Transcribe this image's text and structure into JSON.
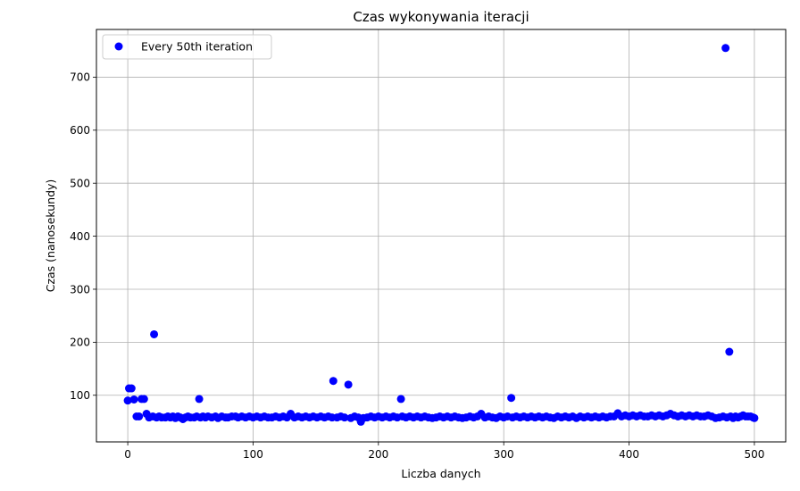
{
  "chart_data": {
    "type": "scatter",
    "title": "Czas wykonywania iteracji",
    "xlabel": "Liczba danych",
    "ylabel": "Czas (nanosekundy)",
    "xlim": [
      -25,
      525
    ],
    "ylim": [
      12,
      790
    ],
    "xticks": [
      0,
      100,
      200,
      300,
      400,
      500
    ],
    "yticks": [
      100,
      200,
      300,
      400,
      500,
      600,
      700
    ],
    "grid": true,
    "legend_position": "upper-left",
    "series": [
      {
        "name": "Every 50th iteration",
        "color": "#0000ff",
        "points": [
          [
            0,
            90
          ],
          [
            1,
            113
          ],
          [
            3,
            113
          ],
          [
            5,
            92
          ],
          [
            7,
            60
          ],
          [
            9,
            60
          ],
          [
            11,
            93
          ],
          [
            13,
            93
          ],
          [
            15,
            65
          ],
          [
            17,
            58
          ],
          [
            20,
            60
          ],
          [
            21,
            215
          ],
          [
            23,
            58
          ],
          [
            25,
            60
          ],
          [
            27,
            58
          ],
          [
            30,
            58
          ],
          [
            32,
            60
          ],
          [
            34,
            58
          ],
          [
            36,
            60
          ],
          [
            38,
            57
          ],
          [
            40,
            60
          ],
          [
            42,
            58
          ],
          [
            44,
            55
          ],
          [
            46,
            58
          ],
          [
            48,
            60
          ],
          [
            50,
            58
          ],
          [
            53,
            58
          ],
          [
            55,
            60
          ],
          [
            57,
            93
          ],
          [
            58,
            58
          ],
          [
            60,
            60
          ],
          [
            62,
            58
          ],
          [
            64,
            60
          ],
          [
            67,
            58
          ],
          [
            70,
            60
          ],
          [
            72,
            57
          ],
          [
            75,
            60
          ],
          [
            78,
            58
          ],
          [
            80,
            58
          ],
          [
            83,
            60
          ],
          [
            86,
            60
          ],
          [
            88,
            58
          ],
          [
            91,
            60
          ],
          [
            94,
            58
          ],
          [
            97,
            60
          ],
          [
            100,
            58
          ],
          [
            103,
            60
          ],
          [
            106,
            58
          ],
          [
            109,
            60
          ],
          [
            112,
            58
          ],
          [
            115,
            58
          ],
          [
            118,
            60
          ],
          [
            121,
            58
          ],
          [
            124,
            60
          ],
          [
            127,
            58
          ],
          [
            130,
            65
          ],
          [
            133,
            58
          ],
          [
            136,
            60
          ],
          [
            139,
            58
          ],
          [
            142,
            60
          ],
          [
            145,
            58
          ],
          [
            148,
            60
          ],
          [
            151,
            58
          ],
          [
            154,
            60
          ],
          [
            157,
            58
          ],
          [
            160,
            60
          ],
          [
            163,
            58
          ],
          [
            164,
            127
          ],
          [
            167,
            58
          ],
          [
            170,
            60
          ],
          [
            173,
            58
          ],
          [
            176,
            120
          ],
          [
            178,
            57
          ],
          [
            181,
            60
          ],
          [
            184,
            58
          ],
          [
            186,
            50
          ],
          [
            188,
            57
          ],
          [
            191,
            58
          ],
          [
            194,
            60
          ],
          [
            197,
            58
          ],
          [
            200,
            60
          ],
          [
            203,
            58
          ],
          [
            206,
            60
          ],
          [
            209,
            58
          ],
          [
            212,
            60
          ],
          [
            215,
            58
          ],
          [
            218,
            93
          ],
          [
            219,
            60
          ],
          [
            222,
            58
          ],
          [
            225,
            60
          ],
          [
            228,
            58
          ],
          [
            231,
            60
          ],
          [
            234,
            58
          ],
          [
            237,
            60
          ],
          [
            240,
            58
          ],
          [
            243,
            57
          ],
          [
            246,
            58
          ],
          [
            249,
            60
          ],
          [
            252,
            58
          ],
          [
            255,
            60
          ],
          [
            258,
            58
          ],
          [
            261,
            60
          ],
          [
            264,
            58
          ],
          [
            267,
            57
          ],
          [
            270,
            58
          ],
          [
            273,
            60
          ],
          [
            276,
            58
          ],
          [
            279,
            60
          ],
          [
            282,
            65
          ],
          [
            285,
            58
          ],
          [
            288,
            60
          ],
          [
            291,
            58
          ],
          [
            294,
            57
          ],
          [
            297,
            60
          ],
          [
            300,
            58
          ],
          [
            303,
            60
          ],
          [
            306,
            95
          ],
          [
            307,
            58
          ],
          [
            310,
            60
          ],
          [
            313,
            58
          ],
          [
            316,
            60
          ],
          [
            319,
            58
          ],
          [
            322,
            60
          ],
          [
            325,
            58
          ],
          [
            328,
            60
          ],
          [
            331,
            58
          ],
          [
            334,
            60
          ],
          [
            337,
            58
          ],
          [
            340,
            57
          ],
          [
            343,
            60
          ],
          [
            346,
            58
          ],
          [
            349,
            60
          ],
          [
            352,
            58
          ],
          [
            355,
            60
          ],
          [
            358,
            57
          ],
          [
            361,
            60
          ],
          [
            364,
            58
          ],
          [
            367,
            60
          ],
          [
            370,
            58
          ],
          [
            373,
            60
          ],
          [
            376,
            58
          ],
          [
            379,
            60
          ],
          [
            382,
            58
          ],
          [
            385,
            60
          ],
          [
            388,
            60
          ],
          [
            391,
            66
          ],
          [
            394,
            60
          ],
          [
            397,
            62
          ],
          [
            400,
            60
          ],
          [
            403,
            62
          ],
          [
            406,
            60
          ],
          [
            409,
            62
          ],
          [
            412,
            60
          ],
          [
            415,
            60
          ],
          [
            418,
            62
          ],
          [
            421,
            60
          ],
          [
            424,
            62
          ],
          [
            427,
            60
          ],
          [
            430,
            62
          ],
          [
            433,
            65
          ],
          [
            436,
            62
          ],
          [
            439,
            60
          ],
          [
            442,
            62
          ],
          [
            445,
            60
          ],
          [
            448,
            62
          ],
          [
            451,
            60
          ],
          [
            454,
            62
          ],
          [
            457,
            60
          ],
          [
            460,
            60
          ],
          [
            463,
            62
          ],
          [
            466,
            60
          ],
          [
            469,
            57
          ],
          [
            472,
            58
          ],
          [
            475,
            60
          ],
          [
            477,
            755
          ],
          [
            478,
            58
          ],
          [
            480,
            182
          ],
          [
            481,
            60
          ],
          [
            483,
            57
          ],
          [
            485,
            60
          ],
          [
            487,
            58
          ],
          [
            489,
            60
          ],
          [
            491,
            62
          ],
          [
            493,
            60
          ],
          [
            495,
            60
          ],
          [
            497,
            60
          ],
          [
            499,
            58
          ],
          [
            500,
            57
          ]
        ]
      }
    ]
  }
}
